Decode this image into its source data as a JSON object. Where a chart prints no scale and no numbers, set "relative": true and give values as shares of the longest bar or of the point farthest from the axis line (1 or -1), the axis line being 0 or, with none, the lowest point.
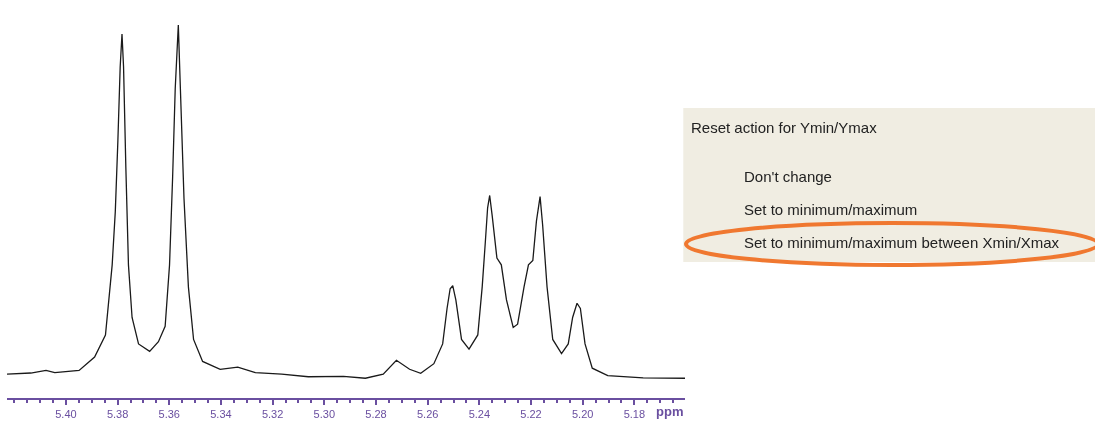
{
  "chart_data": [
    {
      "type": "line",
      "relative": true,
      "xlabel": "ppm",
      "xlim": [
        5.4228,
        5.1604
      ],
      "xticks": [
        {
          "value": 5.4,
          "label": "5.40"
        },
        5.38,
        5.36,
        5.34,
        5.32,
        {
          "value": 5.3,
          "label": "5.30"
        },
        5.28,
        5.26,
        5.24,
        5.22,
        {
          "value": 5.2,
          "label": "5.20"
        },
        5.18
      ],
      "x": [
        5.4228,
        5.4136,
        5.4077,
        5.4043,
        5.3949,
        5.3889,
        5.3847,
        5.3821,
        5.3809,
        5.3799,
        5.379,
        5.3783,
        5.3777,
        5.3768,
        5.3758,
        5.3744,
        5.3719,
        5.3676,
        5.3642,
        5.3616,
        5.3599,
        5.3587,
        5.3577,
        5.3565,
        5.3557,
        5.3543,
        5.3526,
        5.3506,
        5.3471,
        5.3403,
        5.3335,
        5.3267,
        5.3165,
        5.3062,
        5.2926,
        5.2841,
        5.2772,
        5.2721,
        5.267,
        5.2627,
        5.2576,
        5.2542,
        5.2525,
        5.2513,
        5.2503,
        5.2491,
        5.2469,
        5.244,
        5.2406,
        5.2389,
        5.2377,
        5.2368,
        5.236,
        5.235,
        5.2332,
        5.2315,
        5.2295,
        5.2269,
        5.2252,
        5.2227,
        5.221,
        5.2193,
        5.2179,
        5.2165,
        5.2155,
        5.2138,
        5.2116,
        5.2082,
        5.2056,
        5.2039,
        5.2022,
        5.2009,
        5.1991,
        5.1963,
        5.1903,
        5.1766,
        5.1604
      ],
      "series": [
        {
          "color": "#1a1a1a",
          "values": [
            0.064,
            0.067,
            0.074,
            0.068,
            0.074,
            0.11,
            0.169,
            0.357,
            0.499,
            0.688,
            0.888,
            0.976,
            0.888,
            0.616,
            0.357,
            0.216,
            0.145,
            0.125,
            0.151,
            0.192,
            0.357,
            0.593,
            0.829,
            1.0,
            0.829,
            0.534,
            0.298,
            0.157,
            0.098,
            0.077,
            0.083,
            0.068,
            0.064,
            0.057,
            0.058,
            0.053,
            0.064,
            0.101,
            0.077,
            0.066,
            0.092,
            0.145,
            0.24,
            0.293,
            0.301,
            0.263,
            0.157,
            0.131,
            0.169,
            0.298,
            0.417,
            0.51,
            0.543,
            0.487,
            0.375,
            0.357,
            0.263,
            0.189,
            0.198,
            0.298,
            0.357,
            0.369,
            0.475,
            0.54,
            0.463,
            0.298,
            0.157,
            0.119,
            0.145,
            0.216,
            0.254,
            0.24,
            0.145,
            0.08,
            0.06,
            0.054,
            0.053
          ]
        }
      ],
      "marker": "none",
      "line_style": "solid"
    },
    {
      "type": "other",
      "title": "Reset action for Ymin/Ymax",
      "annotations": [
        "Don't change",
        "Set to minimum/maximum",
        "Set to minimum/maximum between Xmin/Xmax"
      ]
    }
  ]
}
